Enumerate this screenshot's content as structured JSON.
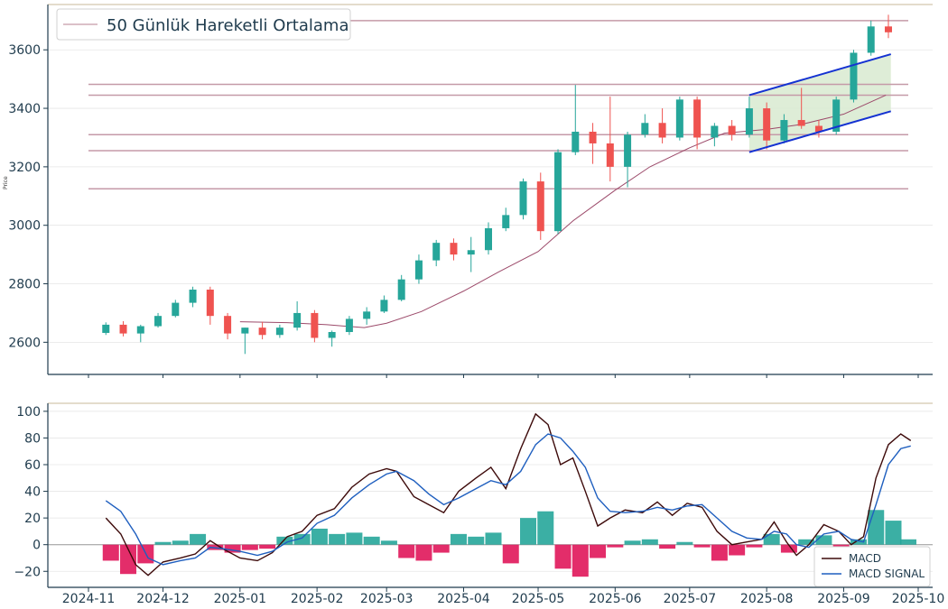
{
  "chart_data": [
    {
      "type": "candlestick",
      "title": "",
      "xlabel": "",
      "ylabel": "Price",
      "ylim": [
        2490,
        3755
      ],
      "yticks": [
        2600,
        2800,
        3000,
        3200,
        3400,
        3600
      ],
      "legend": {
        "label": "50 Günlük Hareketli Ortalama",
        "position": "top-left"
      },
      "moving_average_50": [
        [
          "2025-01-01",
          2670
        ],
        [
          "2025-01-20",
          2667
        ],
        [
          "2025-02-05",
          2660
        ],
        [
          "2025-02-20",
          2650
        ],
        [
          "2025-03-01",
          2665
        ],
        [
          "2025-03-15",
          2705
        ],
        [
          "2025-04-01",
          2775
        ],
        [
          "2025-04-15",
          2840
        ],
        [
          "2025-05-01",
          2910
        ],
        [
          "2025-05-15",
          3015
        ],
        [
          "2025-06-01",
          3120
        ],
        [
          "2025-06-15",
          3200
        ],
        [
          "2025-07-01",
          3265
        ],
        [
          "2025-07-15",
          3315
        ],
        [
          "2025-08-01",
          3328
        ],
        [
          "2025-08-15",
          3345
        ],
        [
          "2025-09-01",
          3380
        ],
        [
          "2025-09-18",
          3445
        ]
      ],
      "horizontal_levels": [
        3125,
        3255,
        3310,
        3445,
        3482,
        3700
      ],
      "channel": {
        "upper": [
          [
            "2025-07-25",
            3445
          ],
          [
            "2025-09-20",
            3585
          ]
        ],
        "lower": [
          [
            "2025-07-25",
            3250
          ],
          [
            "2025-09-20",
            3390
          ]
        ]
      },
      "weekly_ohlc": [
        [
          "2024-11-08",
          2632,
          2668,
          2625,
          2660
        ],
        [
          "2024-11-15",
          2660,
          2672,
          2620,
          2630
        ],
        [
          "2024-11-22",
          2630,
          2660,
          2600,
          2655
        ],
        [
          "2024-11-29",
          2655,
          2700,
          2650,
          2690
        ],
        [
          "2024-12-06",
          2690,
          2745,
          2685,
          2735
        ],
        [
          "2024-12-13",
          2735,
          2790,
          2720,
          2780
        ],
        [
          "2024-12-20",
          2780,
          2790,
          2660,
          2690
        ],
        [
          "2024-12-27",
          2690,
          2700,
          2610,
          2630
        ],
        [
          "2025-01-03",
          2630,
          2650,
          2560,
          2650
        ],
        [
          "2025-01-10",
          2650,
          2670,
          2610,
          2625
        ],
        [
          "2025-01-17",
          2625,
          2660,
          2615,
          2650
        ],
        [
          "2025-01-24",
          2650,
          2740,
          2640,
          2700
        ],
        [
          "2025-01-31",
          2700,
          2710,
          2600,
          2615
        ],
        [
          "2025-02-07",
          2615,
          2640,
          2585,
          2635
        ],
        [
          "2025-02-14",
          2635,
          2690,
          2625,
          2680
        ],
        [
          "2025-02-21",
          2680,
          2720,
          2660,
          2705
        ],
        [
          "2025-02-28",
          2705,
          2760,
          2700,
          2745
        ],
        [
          "2025-03-07",
          2745,
          2830,
          2740,
          2815
        ],
        [
          "2025-03-14",
          2815,
          2900,
          2800,
          2880
        ],
        [
          "2025-03-21",
          2880,
          2950,
          2860,
          2940
        ],
        [
          "2025-03-28",
          2940,
          2955,
          2880,
          2900
        ],
        [
          "2025-04-04",
          2900,
          2960,
          2840,
          2915
        ],
        [
          "2025-04-11",
          2915,
          3010,
          2900,
          2990
        ],
        [
          "2025-04-18",
          2990,
          3060,
          2980,
          3035
        ],
        [
          "2025-04-25",
          3035,
          3160,
          3020,
          3150
        ],
        [
          "2025-05-02",
          3150,
          3180,
          2950,
          2980
        ],
        [
          "2025-05-09",
          2980,
          3260,
          2970,
          3250
        ],
        [
          "2025-05-16",
          3250,
          3480,
          3240,
          3320
        ],
        [
          "2025-05-23",
          3320,
          3350,
          3210,
          3280
        ],
        [
          "2025-05-30",
          3280,
          3440,
          3150,
          3200
        ],
        [
          "2025-06-06",
          3200,
          3320,
          3130,
          3310
        ],
        [
          "2025-06-13",
          3310,
          3380,
          3300,
          3350
        ],
        [
          "2025-06-20",
          3350,
          3400,
          3280,
          3300
        ],
        [
          "2025-06-27",
          3300,
          3440,
          3290,
          3430
        ],
        [
          "2025-07-04",
          3430,
          3440,
          3260,
          3300
        ],
        [
          "2025-07-11",
          3300,
          3350,
          3270,
          3340
        ],
        [
          "2025-07-18",
          3340,
          3360,
          3290,
          3310
        ],
        [
          "2025-07-25",
          3310,
          3440,
          3300,
          3400
        ],
        [
          "2025-08-01",
          3400,
          3420,
          3260,
          3290
        ],
        [
          "2025-08-08",
          3290,
          3380,
          3280,
          3360
        ],
        [
          "2025-08-15",
          3360,
          3470,
          3330,
          3340
        ],
        [
          "2025-08-22",
          3340,
          3360,
          3300,
          3320
        ],
        [
          "2025-08-29",
          3320,
          3440,
          3310,
          3430
        ],
        [
          "2025-09-05",
          3430,
          3600,
          3420,
          3590
        ],
        [
          "2025-09-12",
          3590,
          3700,
          3580,
          3680
        ],
        [
          "2025-09-19",
          3680,
          3720,
          3640,
          3660
        ]
      ]
    },
    {
      "type": "line+bar",
      "title": "",
      "ylim": [
        -32,
        106
      ],
      "yticks": [
        -20,
        0,
        20,
        40,
        60,
        80,
        100
      ],
      "x_ticks": [
        "2024-11",
        "2024-12",
        "2025-01",
        "2025-02",
        "2025-03",
        "2025-04",
        "2025-05",
        "2025-06",
        "2025-07",
        "2025-08",
        "2025-09",
        "2025-10"
      ],
      "legend": {
        "position": "bottom-right",
        "entries": [
          "MACD",
          "MACD SIGNAL"
        ]
      },
      "series": [
        {
          "name": "MACD",
          "color": "#3d0a0a",
          "points": [
            [
              "2024-11-08",
              20
            ],
            [
              "2024-11-14",
              8
            ],
            [
              "2024-11-20",
              -15
            ],
            [
              "2024-11-25",
              -23
            ],
            [
              "2024-12-01",
              -13
            ],
            [
              "2024-12-08",
              -10
            ],
            [
              "2024-12-14",
              -7
            ],
            [
              "2024-12-20",
              3
            ],
            [
              "2024-12-25",
              -3
            ],
            [
              "2025-01-01",
              -10
            ],
            [
              "2025-01-08",
              -12
            ],
            [
              "2025-01-14",
              -6
            ],
            [
              "2025-01-20",
              6
            ],
            [
              "2025-01-26",
              10
            ],
            [
              "2025-02-01",
              22
            ],
            [
              "2025-02-08",
              27
            ],
            [
              "2025-02-15",
              43
            ],
            [
              "2025-02-22",
              53
            ],
            [
              "2025-03-01",
              57
            ],
            [
              "2025-03-05",
              55
            ],
            [
              "2025-03-12",
              36
            ],
            [
              "2025-03-18",
              30
            ],
            [
              "2025-03-24",
              24
            ],
            [
              "2025-03-30",
              40
            ],
            [
              "2025-04-06",
              50
            ],
            [
              "2025-04-12",
              58
            ],
            [
              "2025-04-18",
              42
            ],
            [
              "2025-04-24",
              72
            ],
            [
              "2025-04-30",
              98
            ],
            [
              "2025-05-05",
              90
            ],
            [
              "2025-05-10",
              60
            ],
            [
              "2025-05-15",
              65
            ],
            [
              "2025-05-20",
              40
            ],
            [
              "2025-05-25",
              14
            ],
            [
              "2025-05-30",
              20
            ],
            [
              "2025-06-05",
              26
            ],
            [
              "2025-06-12",
              24
            ],
            [
              "2025-06-18",
              32
            ],
            [
              "2025-06-24",
              22
            ],
            [
              "2025-06-30",
              31
            ],
            [
              "2025-07-06",
              28
            ],
            [
              "2025-07-12",
              10
            ],
            [
              "2025-07-18",
              0
            ],
            [
              "2025-07-24",
              2
            ],
            [
              "2025-07-30",
              4
            ],
            [
              "2025-08-04",
              17
            ],
            [
              "2025-08-09",
              2
            ],
            [
              "2025-08-13",
              -8
            ],
            [
              "2025-08-18",
              0
            ],
            [
              "2025-08-24",
              15
            ],
            [
              "2025-08-30",
              10
            ],
            [
              "2025-09-04",
              0
            ],
            [
              "2025-09-09",
              6
            ],
            [
              "2025-09-14",
              50
            ],
            [
              "2025-09-19",
              75
            ],
            [
              "2025-09-24",
              83
            ],
            [
              "2025-09-28",
              78
            ]
          ]
        },
        {
          "name": "MACD SIGNAL",
          "color": "#1f5fbf",
          "points": [
            [
              "2024-11-08",
              33
            ],
            [
              "2024-11-14",
              25
            ],
            [
              "2024-11-20",
              8
            ],
            [
              "2024-11-25",
              -10
            ],
            [
              "2024-12-01",
              -15
            ],
            [
              "2024-12-08",
              -12
            ],
            [
              "2024-12-14",
              -10
            ],
            [
              "2024-12-20",
              -2
            ],
            [
              "2024-12-25",
              -3
            ],
            [
              "2025-01-01",
              -5
            ],
            [
              "2025-01-08",
              -8
            ],
            [
              "2025-01-14",
              -5
            ],
            [
              "2025-01-20",
              2
            ],
            [
              "2025-01-26",
              5
            ],
            [
              "2025-02-01",
              16
            ],
            [
              "2025-02-08",
              22
            ],
            [
              "2025-02-15",
              35
            ],
            [
              "2025-02-22",
              45
            ],
            [
              "2025-03-01",
              53
            ],
            [
              "2025-03-05",
              55
            ],
            [
              "2025-03-12",
              48
            ],
            [
              "2025-03-18",
              38
            ],
            [
              "2025-03-24",
              30
            ],
            [
              "2025-03-30",
              35
            ],
            [
              "2025-04-06",
              42
            ],
            [
              "2025-04-12",
              48
            ],
            [
              "2025-04-18",
              45
            ],
            [
              "2025-04-24",
              55
            ],
            [
              "2025-04-30",
              75
            ],
            [
              "2025-05-05",
              83
            ],
            [
              "2025-05-10",
              80
            ],
            [
              "2025-05-15",
              70
            ],
            [
              "2025-05-20",
              58
            ],
            [
              "2025-05-25",
              35
            ],
            [
              "2025-05-30",
              25
            ],
            [
              "2025-06-05",
              24
            ],
            [
              "2025-06-12",
              25
            ],
            [
              "2025-06-18",
              28
            ],
            [
              "2025-06-24",
              26
            ],
            [
              "2025-06-30",
              29
            ],
            [
              "2025-07-06",
              30
            ],
            [
              "2025-07-12",
              20
            ],
            [
              "2025-07-18",
              10
            ],
            [
              "2025-07-24",
              5
            ],
            [
              "2025-07-30",
              4
            ],
            [
              "2025-08-04",
              10
            ],
            [
              "2025-08-09",
              8
            ],
            [
              "2025-08-13",
              0
            ],
            [
              "2025-08-18",
              -2
            ],
            [
              "2025-08-24",
              8
            ],
            [
              "2025-08-30",
              10
            ],
            [
              "2025-09-04",
              4
            ],
            [
              "2025-09-09",
              2
            ],
            [
              "2025-09-14",
              30
            ],
            [
              "2025-09-19",
              60
            ],
            [
              "2025-09-24",
              72
            ],
            [
              "2025-09-28",
              74
            ]
          ]
        }
      ],
      "histogram": [
        [
          "2024-11-10",
          -12
        ],
        [
          "2024-11-17",
          -22
        ],
        [
          "2024-11-24",
          -14
        ],
        [
          "2024-12-01",
          2
        ],
        [
          "2024-12-08",
          3
        ],
        [
          "2024-12-15",
          8
        ],
        [
          "2024-12-22",
          -4
        ],
        [
          "2024-12-29",
          -6
        ],
        [
          "2025-01-05",
          -4
        ],
        [
          "2025-01-12",
          -3
        ],
        [
          "2025-01-19",
          6
        ],
        [
          "2025-01-26",
          8
        ],
        [
          "2025-02-02",
          12
        ],
        [
          "2025-02-09",
          8
        ],
        [
          "2025-02-16",
          9
        ],
        [
          "2025-02-23",
          6
        ],
        [
          "2025-03-02",
          3
        ],
        [
          "2025-03-09",
          -10
        ],
        [
          "2025-03-16",
          -12
        ],
        [
          "2025-03-23",
          -6
        ],
        [
          "2025-03-30",
          8
        ],
        [
          "2025-04-06",
          6
        ],
        [
          "2025-04-13",
          9
        ],
        [
          "2025-04-20",
          -14
        ],
        [
          "2025-04-27",
          20
        ],
        [
          "2025-05-04",
          25
        ],
        [
          "2025-05-11",
          -18
        ],
        [
          "2025-05-18",
          -24
        ],
        [
          "2025-05-25",
          -10
        ],
        [
          "2025-06-01",
          -2
        ],
        [
          "2025-06-08",
          3
        ],
        [
          "2025-06-15",
          4
        ],
        [
          "2025-06-22",
          -3
        ],
        [
          "2025-06-29",
          2
        ],
        [
          "2025-07-06",
          -2
        ],
        [
          "2025-07-13",
          -12
        ],
        [
          "2025-07-20",
          -8
        ],
        [
          "2025-07-27",
          -2
        ],
        [
          "2025-08-03",
          8
        ],
        [
          "2025-08-10",
          -6
        ],
        [
          "2025-08-17",
          4
        ],
        [
          "2025-08-24",
          7
        ],
        [
          "2025-08-31",
          -5
        ],
        [
          "2025-09-07",
          4
        ],
        [
          "2025-09-14",
          26
        ],
        [
          "2025-09-21",
          18
        ],
        [
          "2025-09-27",
          4
        ]
      ]
    }
  ],
  "colors": {
    "up": "#26a69a",
    "down": "#ef5350",
    "hist_up": "#26a69a",
    "hist_down": "#e0165a",
    "ma": "#9c4a6a",
    "level": "#c59aa8",
    "channel_line": "#1432d2",
    "channel_fill": "#d8ead0",
    "axis": "#1f3b4d",
    "grid": "#e6e6e6",
    "top_border": "#c9b89a"
  }
}
